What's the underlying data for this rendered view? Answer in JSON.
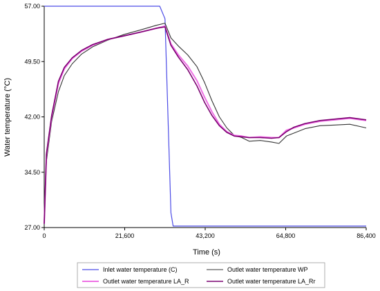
{
  "chart_data": {
    "type": "line",
    "xlabel": "Time (s)",
    "ylabel": "Water temperature (°C)",
    "xlim": [
      0,
      86400
    ],
    "ylim": [
      27,
      57
    ],
    "x_ticks": [
      0,
      21600,
      43200,
      64800,
      86400
    ],
    "x_tick_labels": [
      "0",
      "21,600",
      "43,200",
      "64,800",
      "86,400"
    ],
    "y_ticks": [
      27,
      34.5,
      42,
      49.5,
      57
    ],
    "y_tick_labels": [
      "27.00",
      "34.50",
      "42.00",
      "49.50",
      "57.00"
    ],
    "grid": false,
    "legend_position": "bottom",
    "series": [
      {
        "name": "Inlet water temperature (C)",
        "color": "#4a4ae6",
        "x": [
          0,
          31000,
          32400,
          34000,
          34600,
          86400
        ],
        "y": [
          57.0,
          57.0,
          55.3,
          29.0,
          27.2,
          27.2
        ]
      },
      {
        "name": "Outlet water temperature WP",
        "color": "#333333",
        "x": [
          0,
          600,
          2000,
          3800,
          5400,
          7500,
          10000,
          13000,
          17000,
          21600,
          26000,
          30000,
          32400,
          34000,
          36000,
          38500,
          41000,
          43000,
          45000,
          47000,
          49000,
          51000,
          53000,
          55000,
          58000,
          61000,
          63000,
          65000,
          67000,
          70000,
          74000,
          78000,
          82000,
          86400
        ],
        "y": [
          27.5,
          36.0,
          41.4,
          45.4,
          47.6,
          49.2,
          50.5,
          51.5,
          52.4,
          53.2,
          53.8,
          54.4,
          54.7,
          52.7,
          51.6,
          50.4,
          48.8,
          46.7,
          44.2,
          42.0,
          40.5,
          39.5,
          39.2,
          38.7,
          38.8,
          38.6,
          38.4,
          39.4,
          39.8,
          40.4,
          40.8,
          40.9,
          41.0,
          40.5
        ]
      },
      {
        "name": "Outlet water temperature LA_R",
        "color": "#ee6fe4",
        "x": [
          0,
          600,
          2000,
          3800,
          5400,
          7500,
          10000,
          13000,
          17000,
          21600,
          26000,
          30000,
          32400,
          34000,
          36000,
          38500,
          41000,
          43000,
          45000,
          47000,
          49000,
          51000,
          53000,
          55000,
          58000,
          61000,
          63000,
          65000,
          67000,
          70000,
          74000,
          78000,
          82000,
          86400
        ],
        "y": [
          27.5,
          36.8,
          42.0,
          46.5,
          48.5,
          49.9,
          50.9,
          51.7,
          52.5,
          53.0,
          53.5,
          54.0,
          54.3,
          51.9,
          50.4,
          48.9,
          46.9,
          44.7,
          42.7,
          41.0,
          40.0,
          39.5,
          39.4,
          39.2,
          39.3,
          39.2,
          39.2,
          40.2,
          40.5,
          41.0,
          41.4,
          41.6,
          41.8,
          41.5
        ]
      },
      {
        "name": "Outlet water temperature LA_Rr",
        "color": "#7a0070",
        "x": [
          0,
          600,
          2000,
          3800,
          5400,
          7500,
          10000,
          13000,
          17000,
          21600,
          26000,
          30000,
          32400,
          34000,
          36000,
          38500,
          41000,
          43000,
          45000,
          47000,
          49000,
          51000,
          53000,
          55000,
          58000,
          61000,
          63000,
          65000,
          67000,
          70000,
          74000,
          78000,
          82000,
          86400
        ],
        "y": [
          27.5,
          37.0,
          42.2,
          46.8,
          48.7,
          50.0,
          51.0,
          51.8,
          52.5,
          53.0,
          53.5,
          54.0,
          54.2,
          51.7,
          50.1,
          48.4,
          46.2,
          44.0,
          42.2,
          40.8,
          39.9,
          39.4,
          39.3,
          39.2,
          39.2,
          39.1,
          39.2,
          40.0,
          40.6,
          41.1,
          41.5,
          41.7,
          41.9,
          41.6
        ]
      }
    ]
  }
}
